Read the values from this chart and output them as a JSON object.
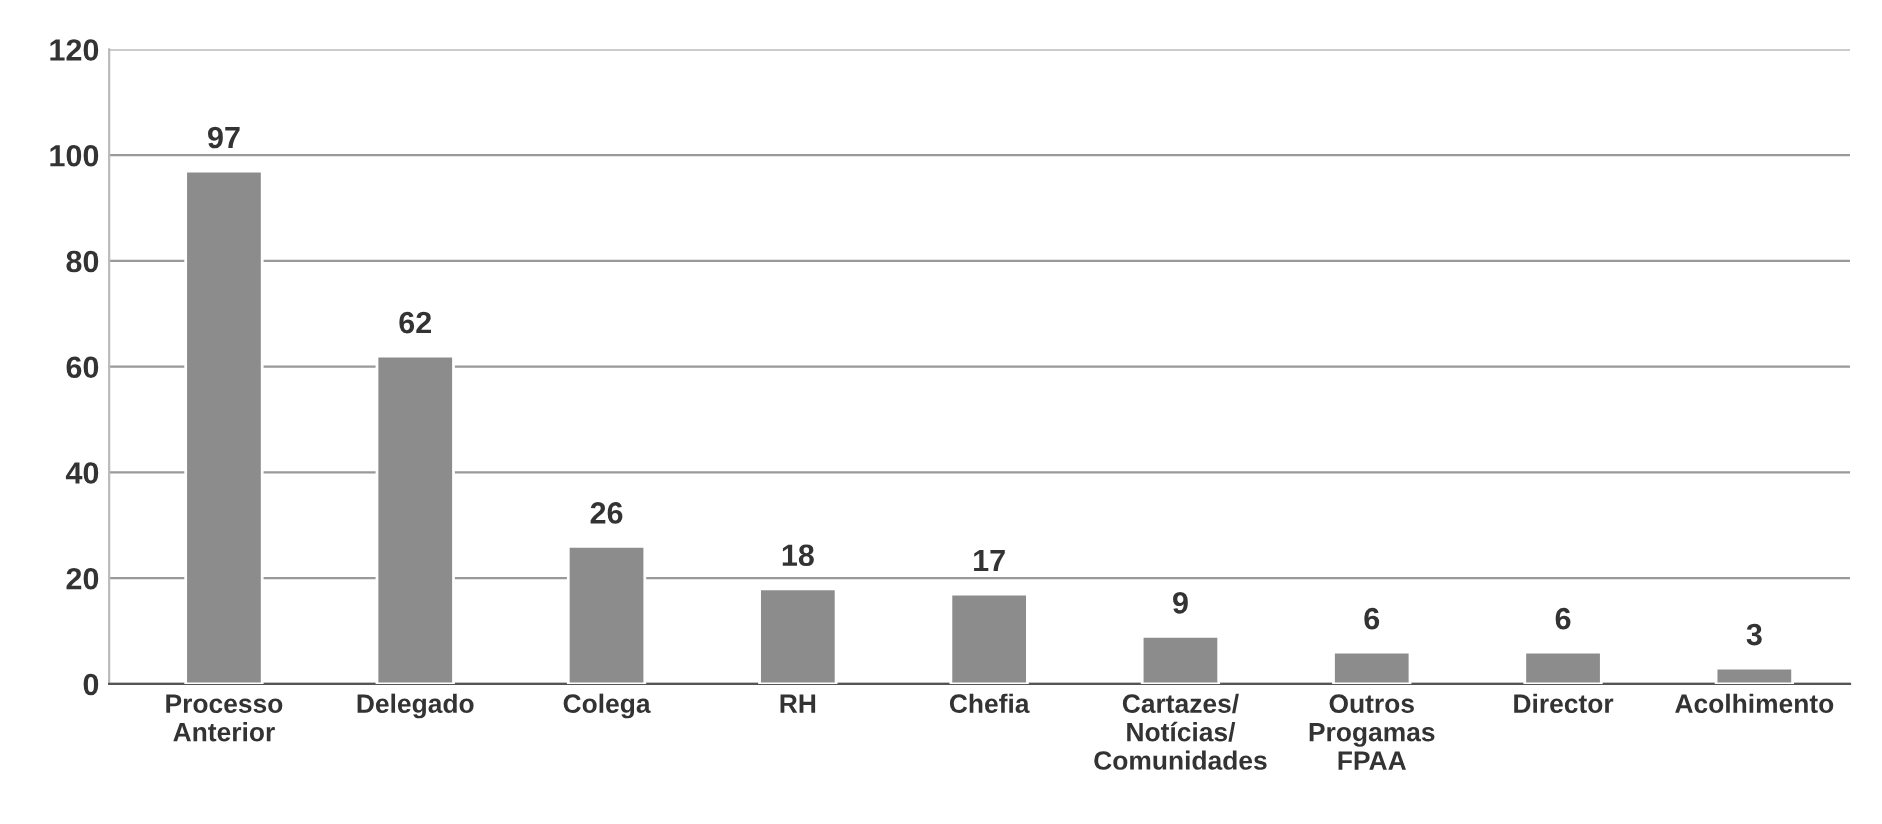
{
  "chart_data": {
    "type": "bar",
    "categories": [
      "Processo\nAnterior",
      "Delegado",
      "Colega",
      "RH",
      "Chefia",
      "Cartazes/\nNotícias/\nComunidades",
      "Outros\nProgamas\nFPAA",
      "Director",
      "Acolhimento"
    ],
    "values": [
      97,
      62,
      26,
      18,
      17,
      9,
      6,
      6,
      3
    ],
    "color": "#8c8c8c",
    "ylim": [
      0,
      120
    ],
    "yticks": [
      0,
      20,
      40,
      60,
      80,
      100,
      120
    ],
    "grid": "y",
    "data_labels": true
  }
}
